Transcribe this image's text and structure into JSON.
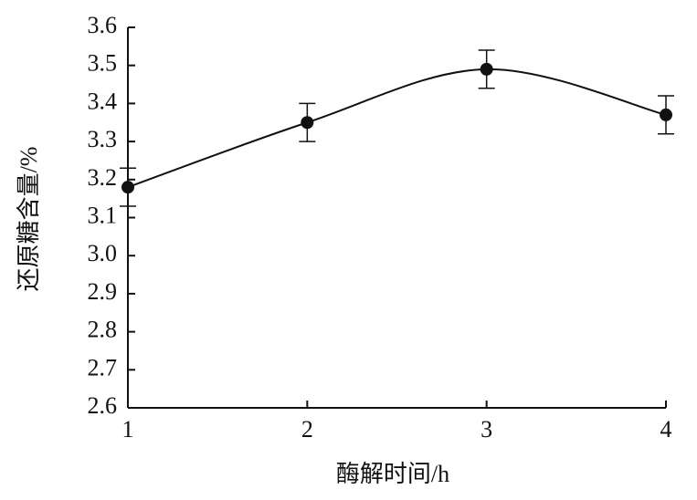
{
  "chart_data": {
    "type": "line",
    "x_label": "酶解时间/h",
    "y_label": "还原糖含量/%",
    "x": [
      1,
      2,
      3,
      4
    ],
    "series": [
      {
        "color": "#111111",
        "values": [
          3.18,
          3.35,
          3.49,
          3.37
        ],
        "errors": [
          0.05,
          0.05,
          0.05,
          0.05
        ]
      }
    ],
    "xlim": [
      1,
      4
    ],
    "xticks": [
      1,
      2,
      3,
      4
    ],
    "ylim": [
      2.6,
      3.6
    ],
    "yticks": [
      {
        "value": 2.6,
        "label": "2.6"
      },
      2.7,
      2.8,
      2.9,
      {
        "value": 3,
        "label": "3.0"
      },
      3.1,
      3.2,
      3.3,
      3.4,
      3.5,
      3.6
    ],
    "grid": false
  }
}
